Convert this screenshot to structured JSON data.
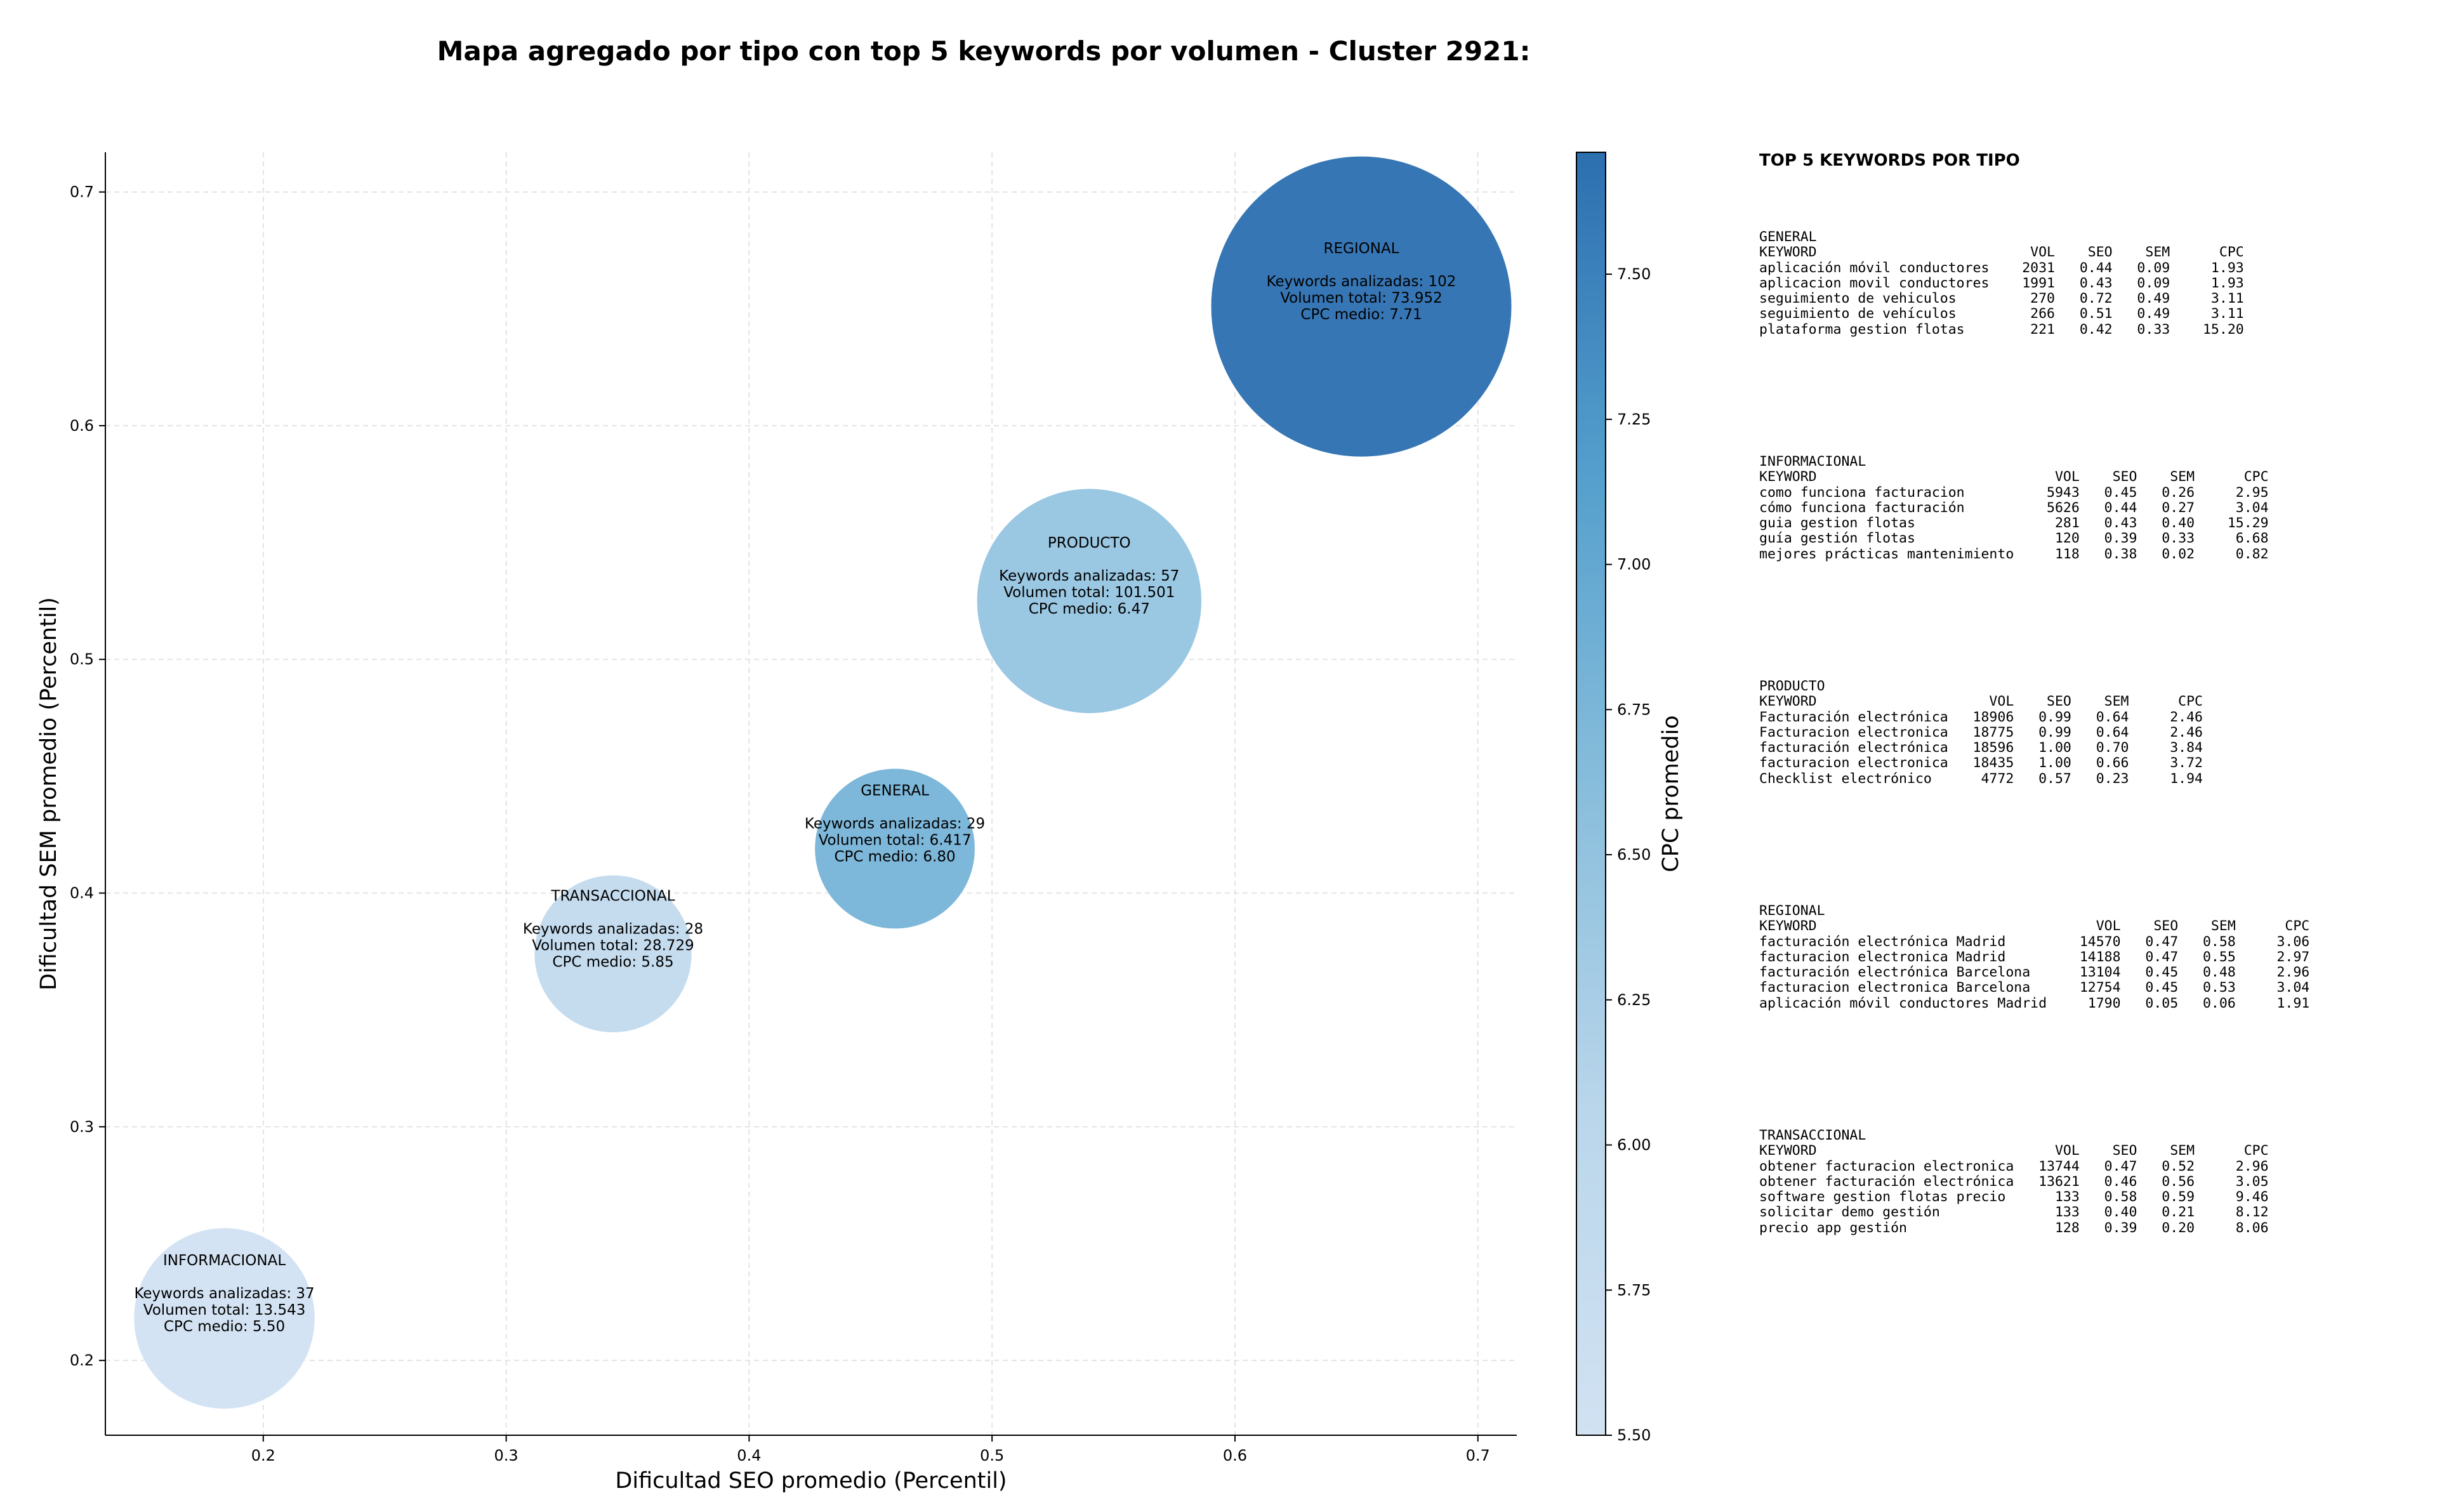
{
  "title": "Mapa agregado por tipo con top 5 keywords por volumen - Cluster 2921:",
  "chart_data": {
    "type": "scatter",
    "xlabel": "Dificultad SEO promedio (Percentil)",
    "ylabel": "Dificultad SEM promedio (Percentil)",
    "xlim": [
      0.135,
      0.716
    ],
    "ylim": [
      0.168,
      0.717
    ],
    "xticks": [
      "0.2",
      "0.3",
      "0.4",
      "0.5",
      "0.6",
      "0.7"
    ],
    "xtick_values": [
      0.2,
      0.3,
      0.4,
      0.5,
      0.6,
      0.7
    ],
    "yticks": [
      "0.2",
      "0.3",
      "0.4",
      "0.5",
      "0.6",
      "0.7"
    ],
    "ytick_values": [
      0.2,
      0.3,
      0.4,
      0.5,
      0.6,
      0.7
    ],
    "grid": true,
    "colorbar": {
      "label": "CPC promedio",
      "min": 5.5,
      "max": 7.71,
      "ticks": [
        "5.50",
        "5.75",
        "6.00",
        "6.25",
        "6.50",
        "6.75",
        "7.00",
        "7.25",
        "7.50"
      ],
      "tick_values": [
        5.5,
        5.75,
        6.0,
        6.25,
        6.5,
        6.75,
        7.0,
        7.25,
        7.5
      ]
    },
    "points": [
      {
        "name": "INFORMACIONAL",
        "x": 0.184,
        "y": 0.218,
        "keywords_line": "Keywords analizadas: 37",
        "volume_line": "Volumen total: 13.543",
        "cpc_line": "CPC medio: 5.50",
        "cpc": 5.5,
        "keywords": 37
      },
      {
        "name": "TRANSACCIONAL",
        "x": 0.344,
        "y": 0.374,
        "keywords_line": "Keywords analizadas: 28",
        "volume_line": "Volumen total: 28.729",
        "cpc_line": "CPC medio: 5.85",
        "cpc": 5.85,
        "keywords": 28
      },
      {
        "name": "GENERAL",
        "x": 0.46,
        "y": 0.419,
        "keywords_line": "Keywords analizadas: 29",
        "volume_line": "Volumen total: 6.417",
        "cpc_line": "CPC medio: 6.80",
        "cpc": 6.8,
        "keywords": 29
      },
      {
        "name": "PRODUCTO",
        "x": 0.54,
        "y": 0.525,
        "keywords_line": "Keywords analizadas: 57",
        "volume_line": "Volumen total: 101.501",
        "cpc_line": "CPC medio: 6.47",
        "cpc": 6.47,
        "keywords": 57
      },
      {
        "name": "REGIONAL",
        "x": 0.652,
        "y": 0.651,
        "keywords_line": "Keywords analizadas: 102",
        "volume_line": "Volumen total: 73.952",
        "cpc_line": "CPC medio: 7.71",
        "cpc": 7.71,
        "keywords": 102
      }
    ]
  },
  "side_panel": {
    "title": "TOP 5 KEYWORDS POR TIPO",
    "blocks": [
      {
        "type": "GENERAL",
        "header": "KEYWORD                          VOL    SEO    SEM      CPC",
        "rows": [
          "aplicación móvil conductores    2031   0.44   0.09     1.93",
          "aplicacion movil conductores    1991   0.43   0.09     1.93",
          "seguimiento de vehiculos         270   0.72   0.49     3.11",
          "seguimiento de vehículos         266   0.51   0.49     3.11",
          "plataforma gestion flotas        221   0.42   0.33    15.20"
        ]
      },
      {
        "type": "INFORMACIONAL",
        "header": "KEYWORD                             VOL    SEO    SEM      CPC",
        "rows": [
          "como funciona facturacion          5943   0.45   0.26     2.95",
          "cómo funciona facturación          5626   0.44   0.27     3.04",
          "guia gestion flotas                 281   0.43   0.40    15.29",
          "guía gestión flotas                 120   0.39   0.33     6.68",
          "mejores prácticas mantenimiento     118   0.38   0.02     0.82"
        ]
      },
      {
        "type": "PRODUCTO",
        "header": "KEYWORD                     VOL    SEO    SEM      CPC",
        "rows": [
          "Facturación electrónica   18906   0.99   0.64     2.46",
          "Facturacion electronica   18775   0.99   0.64     2.46",
          "facturación electrónica   18596   1.00   0.70     3.84",
          "facturacion electronica   18435   1.00   0.66     3.72",
          "Checklist electrónico      4772   0.57   0.23     1.94"
        ]
      },
      {
        "type": "REGIONAL",
        "header": "KEYWORD                                  VOL    SEO    SEM      CPC",
        "rows": [
          "facturación electrónica Madrid         14570   0.47   0.58     3.06",
          "facturacion electronica Madrid         14188   0.47   0.55     2.97",
          "facturación electrónica Barcelona      13104   0.45   0.48     2.96",
          "facturacion electronica Barcelona      12754   0.45   0.53     3.04",
          "aplicación móvil conductores Madrid     1790   0.05   0.06     1.91"
        ]
      },
      {
        "type": "TRANSACCIONAL",
        "header": "KEYWORD                             VOL    SEO    SEM      CPC",
        "rows": [
          "obtener facturacion electronica   13744   0.47   0.52     2.96",
          "obtener facturación electrónica   13621   0.46   0.56     3.05",
          "software gestion flotas precio      133   0.58   0.59     9.46",
          "solicitar demo gestión              133   0.40   0.21     8.12",
          "precio app gestión                  128   0.39   0.20     8.06"
        ]
      }
    ]
  }
}
